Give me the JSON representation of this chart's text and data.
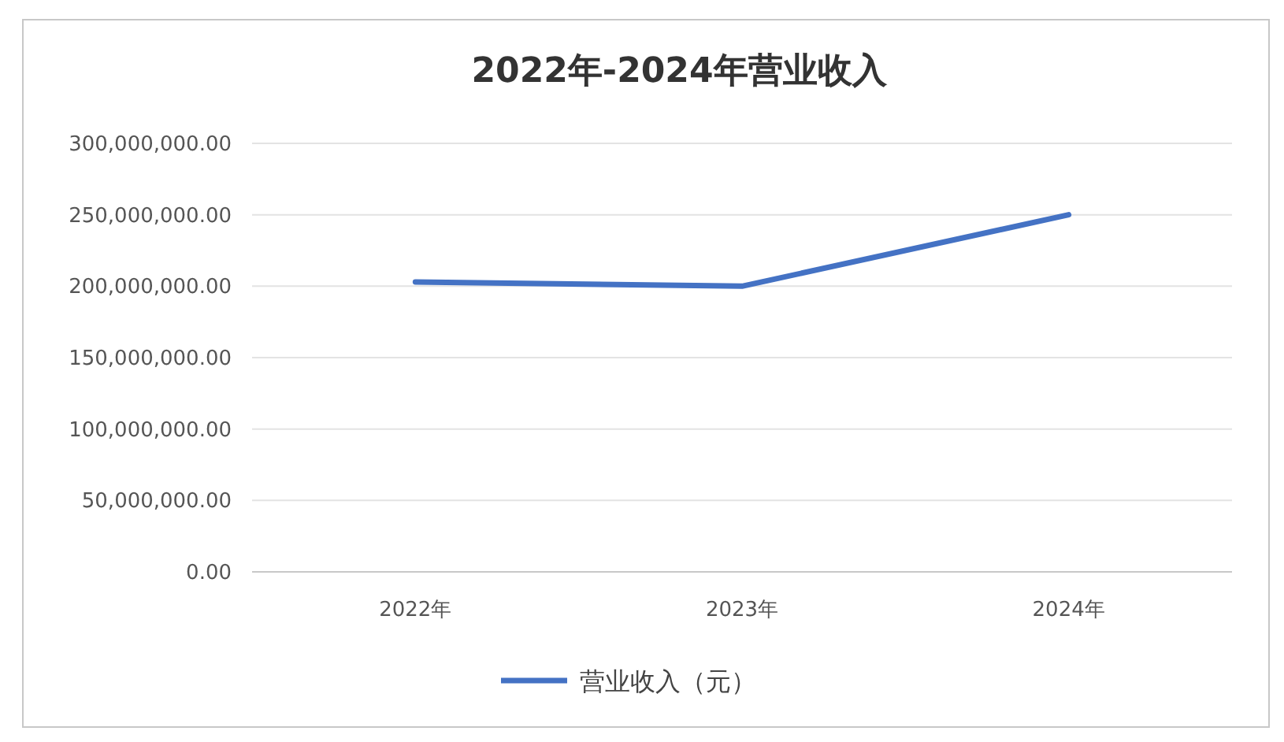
{
  "chart_data": {
    "type": "line",
    "title": "2022年-2024年营业收入",
    "categories": [
      "2022年",
      "2023年",
      "2024年"
    ],
    "series": [
      {
        "name": "营业收入（元）",
        "color": "#4472c4",
        "values": [
          203000000,
          200000000,
          250000000
        ]
      }
    ],
    "ylim": [
      0,
      300000000
    ],
    "yticks": [
      {
        "value": 0,
        "label": "0.00"
      },
      {
        "value": 50000000,
        "label": "50,000,000.00"
      },
      {
        "value": 100000000,
        "label": "100,000,000.00"
      },
      {
        "value": 150000000,
        "label": "150,000,000.00"
      },
      {
        "value": 200000000,
        "label": "200,000,000.00"
      },
      {
        "value": 250000000,
        "label": "250,000,000.00"
      },
      {
        "value": 300000000,
        "label": "300,000,000.00"
      }
    ],
    "grid": "y",
    "legend": "bottom"
  }
}
